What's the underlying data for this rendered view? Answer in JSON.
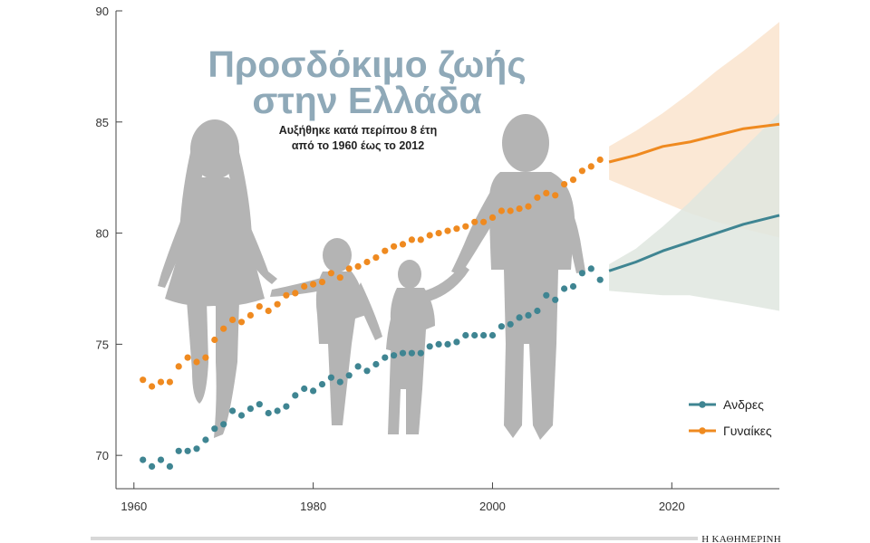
{
  "chart_data": {
    "type": "scatter",
    "title": [
      "Προσδόκιμο ζωής",
      "στην Ελλάδα"
    ],
    "subtitle": [
      "Αυξήθηκε κατά περίπου 8 έτη",
      "από το 1960 έως το 2012"
    ],
    "xlabel": "",
    "ylabel": "",
    "xlim": [
      1958,
      2032
    ],
    "ylim": [
      68.5,
      90
    ],
    "x_ticks": [
      1960,
      1980,
      2000,
      2020
    ],
    "y_ticks": [
      70,
      75,
      80,
      85,
      90
    ],
    "grid": false,
    "legend_position": "bottom-right",
    "series": [
      {
        "name": "Ανδρες",
        "color": "#3f8592",
        "band_color": "#dfe6df",
        "observed": {
          "x": [
            1961,
            1962,
            1963,
            1964,
            1965,
            1966,
            1967,
            1968,
            1969,
            1970,
            1971,
            1972,
            1973,
            1974,
            1975,
            1976,
            1977,
            1978,
            1979,
            1980,
            1981,
            1982,
            1983,
            1984,
            1985,
            1986,
            1987,
            1988,
            1989,
            1990,
            1991,
            1992,
            1993,
            1994,
            1995,
            1996,
            1997,
            1998,
            1999,
            2000,
            2001,
            2002,
            2003,
            2004,
            2005,
            2006,
            2007,
            2008,
            2009,
            2010,
            2011,
            2012
          ],
          "y": [
            69.8,
            69.5,
            69.8,
            69.5,
            70.2,
            70.2,
            70.3,
            70.7,
            71.2,
            71.4,
            72.0,
            71.8,
            72.1,
            72.3,
            71.9,
            72.0,
            72.2,
            72.7,
            73.0,
            72.9,
            73.2,
            73.5,
            73.3,
            73.6,
            74.0,
            73.8,
            74.1,
            74.4,
            74.5,
            74.6,
            74.6,
            74.6,
            74.9,
            75.0,
            75.0,
            75.1,
            75.4,
            75.4,
            75.4,
            75.4,
            75.8,
            75.9,
            76.2,
            76.3,
            76.5,
            77.2,
            77.0,
            77.5,
            77.6,
            78.2,
            78.4,
            77.9
          ]
        },
        "projection": {
          "x": [
            2013,
            2016,
            2019,
            2022,
            2025,
            2028,
            2032
          ],
          "y": [
            78.3,
            78.7,
            79.2,
            79.6,
            80.0,
            80.4,
            80.8
          ],
          "lower": [
            77.4,
            77.3,
            77.2,
            77.2,
            77.0,
            76.8,
            76.5
          ],
          "upper": [
            78.6,
            79.3,
            80.3,
            81.4,
            82.6,
            83.8,
            85.4
          ]
        }
      },
      {
        "name": "Γυναίκες",
        "color": "#ef8a20",
        "band_color": "#fbe6d0",
        "observed": {
          "x": [
            1961,
            1962,
            1963,
            1964,
            1965,
            1966,
            1967,
            1968,
            1969,
            1970,
            1971,
            1972,
            1973,
            1974,
            1975,
            1976,
            1977,
            1978,
            1979,
            1980,
            1981,
            1982,
            1983,
            1984,
            1985,
            1986,
            1987,
            1988,
            1989,
            1990,
            1991,
            1992,
            1993,
            1994,
            1995,
            1996,
            1997,
            1998,
            1999,
            2000,
            2001,
            2002,
            2003,
            2004,
            2005,
            2006,
            2007,
            2008,
            2009,
            2010,
            2011,
            2012
          ],
          "y": [
            73.4,
            73.1,
            73.3,
            73.3,
            74.0,
            74.4,
            74.2,
            74.4,
            75.2,
            75.7,
            76.1,
            76.0,
            76.3,
            76.7,
            76.5,
            76.8,
            77.2,
            77.3,
            77.6,
            77.7,
            77.8,
            78.2,
            78.0,
            78.4,
            78.5,
            78.7,
            78.9,
            79.2,
            79.4,
            79.5,
            79.7,
            79.7,
            79.9,
            80.0,
            80.1,
            80.2,
            80.3,
            80.5,
            80.5,
            80.7,
            81.0,
            81.0,
            81.1,
            81.2,
            81.6,
            81.8,
            81.7,
            82.2,
            82.4,
            82.8,
            83.0,
            83.3
          ]
        },
        "projection": {
          "x": [
            2013,
            2016,
            2019,
            2022,
            2025,
            2028,
            2032
          ],
          "y": [
            83.2,
            83.5,
            83.9,
            84.1,
            84.4,
            84.7,
            84.9
          ],
          "lower": [
            82.4,
            81.9,
            81.4,
            80.9,
            80.5,
            80.2,
            79.8
          ],
          "upper": [
            83.9,
            84.6,
            85.4,
            86.3,
            87.3,
            88.2,
            89.5
          ]
        }
      }
    ]
  },
  "credit": "Η ΚΑΘΗΜΕΡΙΝΗ"
}
